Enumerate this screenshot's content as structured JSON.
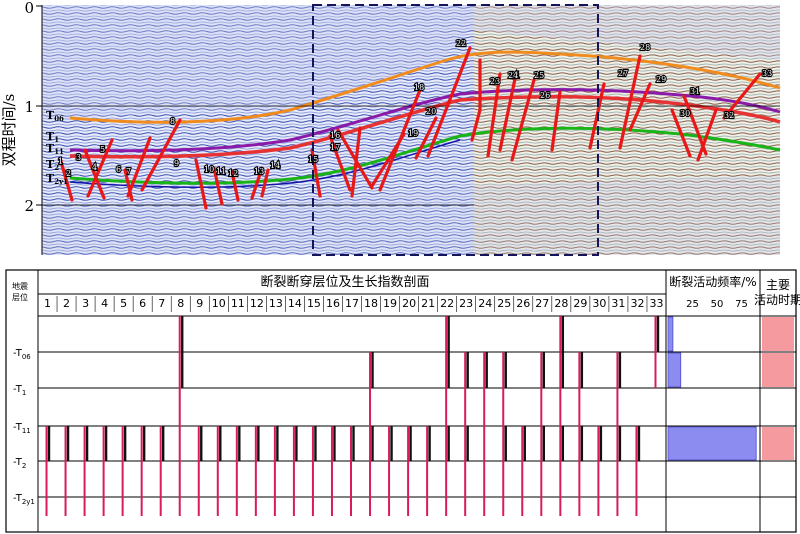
{
  "seismic": {
    "y_axis_label": "双程时间/s",
    "y_ticks": [
      "0",
      "1",
      "2"
    ],
    "horizon_labels": [
      "T06",
      "T1",
      "T11",
      "T2",
      "T2y1"
    ],
    "fault_labels": [
      "1",
      "2",
      "3",
      "4",
      "5",
      "6",
      "7",
      "8",
      "9",
      "10",
      "11",
      "12",
      "13",
      "14",
      "15",
      "16",
      "17",
      "18",
      "19",
      "20",
      "21",
      "22",
      "23",
      "24",
      "25",
      "26",
      "27",
      "28",
      "29",
      "30",
      "31",
      "32",
      "33"
    ],
    "colors": {
      "horizon_T06": "#f08c1e",
      "horizon_T1": "#e63232",
      "horizon_T11": "#8a1aa8",
      "horizon_T2": "#18b418",
      "fault": "#e81818",
      "box_dash": "#14145a"
    }
  },
  "table": {
    "row_header": "地震层位",
    "title": "断裂断穿层位及生长指数剖面",
    "freq_header": "断裂活动频率/%",
    "freq_ticks": [
      "25",
      "50",
      "75"
    ],
    "period_header": "主要活动时期",
    "fault_numbers": [
      "1",
      "2",
      "3",
      "4",
      "5",
      "6",
      "7",
      "8",
      "9",
      "10",
      "11",
      "12",
      "13",
      "14",
      "15",
      "16",
      "17",
      "18",
      "19",
      "20",
      "21",
      "22",
      "23",
      "24",
      "25",
      "26",
      "27",
      "28",
      "29",
      "30",
      "31",
      "32",
      "33"
    ],
    "layers": [
      {
        "main": "T",
        "sub": "06"
      },
      {
        "main": "T",
        "sub": "1"
      },
      {
        "main": "T",
        "sub": "11"
      },
      {
        "main": "T",
        "sub": "2"
      },
      {
        "main": "T",
        "sub": "2y1"
      }
    ],
    "freq_values": [
      {
        "interval": "above T06",
        "value": 5
      },
      {
        "interval": "T06-T1",
        "value": 13
      },
      {
        "interval": "T1-T11",
        "value": 0
      },
      {
        "interval": "T11-T2",
        "value": 90
      },
      {
        "interval": "T2-T2y1",
        "value": 0
      },
      {
        "interval": "below T2y1",
        "value": 0
      }
    ],
    "active_intervals": [
      "above T06",
      "T06-T1",
      "T11-T2"
    ],
    "colors": {
      "fault_line": "#d81b60",
      "growth_bar": "#111111",
      "freq_bar": "#8c8cf0",
      "active_fill": "#f59ba0"
    }
  }
}
